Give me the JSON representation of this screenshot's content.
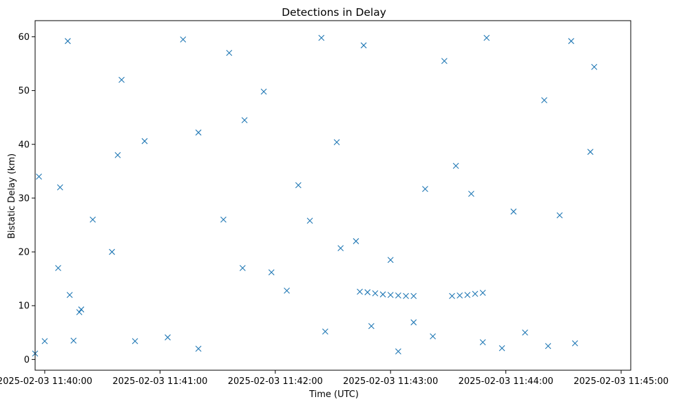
{
  "chart_data": {
    "type": "scatter",
    "title": "Detections in Delay",
    "xlabel": "Time (UTC)",
    "ylabel": "Bistatic Delay (km)",
    "marker": "x",
    "color": "#1f77b4",
    "grid": false,
    "xlim": [
      "2025-02-03 11:39:55",
      "2025-02-03 11:45:05"
    ],
    "ylim": [
      -2,
      63
    ],
    "x_ticks": [
      "2025-02-03 11:40:00",
      "2025-02-03 11:41:00",
      "2025-02-03 11:42:00",
      "2025-02-03 11:43:00",
      "2025-02-03 11:44:00",
      "2025-02-03 11:45:00"
    ],
    "y_ticks": [
      "0",
      "10",
      "20",
      "30",
      "40",
      "50",
      "60"
    ],
    "points": [
      [
        "2025-02-03 11:39:55",
        1.1
      ],
      [
        "2025-02-03 11:40:07",
        17.0
      ],
      [
        "2025-02-03 11:40:15",
        3.5
      ],
      [
        "2025-02-03 11:40:08",
        32.0
      ],
      [
        "2025-02-03 11:40:18",
        8.8
      ],
      [
        "2025-02-03 11:40:35",
        20.0
      ],
      [
        "2025-02-03 11:40:19",
        9.3
      ],
      [
        "2025-02-03 11:39:57",
        34.0
      ],
      [
        "2025-02-03 11:40:00",
        3.4
      ],
      [
        "2025-02-03 11:40:13",
        12.0
      ],
      [
        "2025-02-03 11:40:25",
        26.0
      ],
      [
        "2025-02-03 11:40:38",
        38.0
      ],
      [
        "2025-02-03 11:40:47",
        3.4
      ],
      [
        "2025-02-03 11:41:04",
        4.1
      ],
      [
        "2025-02-03 11:41:20",
        2.0
      ],
      [
        "2025-02-03 11:41:33",
        26.0
      ],
      [
        "2025-02-03 11:41:43",
        17.0
      ],
      [
        "2025-02-03 11:41:58",
        16.2
      ],
      [
        "2025-02-03 11:42:06",
        12.8
      ],
      [
        "2025-02-03 11:42:18",
        25.8
      ],
      [
        "2025-02-03 11:42:26",
        5.2
      ],
      [
        "2025-02-03 11:42:34",
        20.7
      ],
      [
        "2025-02-03 11:42:42",
        22.0
      ],
      [
        "2025-02-03 11:42:50",
        6.2
      ],
      [
        "2025-02-03 11:43:00",
        18.5
      ],
      [
        "2025-02-03 11:43:04",
        1.5
      ],
      [
        "2025-02-03 11:43:12",
        6.9
      ],
      [
        "2025-02-03 11:43:22",
        4.3
      ],
      [
        "2025-02-03 11:43:34",
        36.0
      ],
      [
        "2025-02-03 11:43:48",
        3.2
      ],
      [
        "2025-02-03 11:43:58",
        2.1
      ],
      [
        "2025-02-03 11:44:10",
        5.0
      ],
      [
        "2025-02-03 11:44:22",
        2.5
      ],
      [
        "2025-02-03 11:44:36",
        3.0
      ],
      [
        "2025-02-03 11:44:44",
        38.6
      ],
      [
        "2025-02-03 11:43:28",
        55.5
      ],
      [
        "2025-02-03 11:42:46",
        58.4
      ],
      [
        "2025-02-03 11:41:54",
        49.8
      ],
      [
        "2025-02-03 11:41:12",
        59.5
      ],
      [
        "2025-02-03 11:40:40",
        52.0
      ],
      [
        "2025-02-03 11:40:12",
        59.2
      ],
      [
        "2025-02-03 11:41:36",
        57.0
      ],
      [
        "2025-02-03 11:42:24",
        59.8
      ],
      [
        "2025-02-03 11:43:50",
        59.8
      ],
      [
        "2025-02-03 11:44:20",
        48.2
      ],
      [
        "2025-02-03 11:44:34",
        59.2
      ],
      [
        "2025-02-03 11:44:46",
        54.4
      ],
      [
        "2025-02-03 11:42:32",
        40.4
      ],
      [
        "2025-02-03 11:41:20",
        42.2
      ],
      [
        "2025-02-03 11:40:52",
        40.6
      ],
      [
        "2025-02-03 11:41:44",
        44.5
      ],
      [
        "2025-02-03 11:42:12",
        32.4
      ],
      [
        "2025-02-03 11:43:18",
        31.7
      ],
      [
        "2025-02-03 11:43:42",
        30.8
      ],
      [
        "2025-02-03 11:44:04",
        27.5
      ],
      [
        "2025-02-03 11:44:28",
        26.8
      ],
      [
        "2025-02-03 11:42:44",
        12.6
      ],
      [
        "2025-02-03 11:42:48",
        12.5
      ],
      [
        "2025-02-03 11:42:52",
        12.3
      ],
      [
        "2025-02-03 11:42:56",
        12.1
      ],
      [
        "2025-02-03 11:43:00",
        12.0
      ],
      [
        "2025-02-03 11:43:04",
        11.9
      ],
      [
        "2025-02-03 11:43:08",
        11.8
      ],
      [
        "2025-02-03 11:43:12",
        11.8
      ],
      [
        "2025-02-03 11:43:32",
        11.8
      ],
      [
        "2025-02-03 11:43:36",
        11.9
      ],
      [
        "2025-02-03 11:43:40",
        12.0
      ],
      [
        "2025-02-03 11:43:44",
        12.2
      ],
      [
        "2025-02-03 11:43:48",
        12.4
      ]
    ]
  }
}
